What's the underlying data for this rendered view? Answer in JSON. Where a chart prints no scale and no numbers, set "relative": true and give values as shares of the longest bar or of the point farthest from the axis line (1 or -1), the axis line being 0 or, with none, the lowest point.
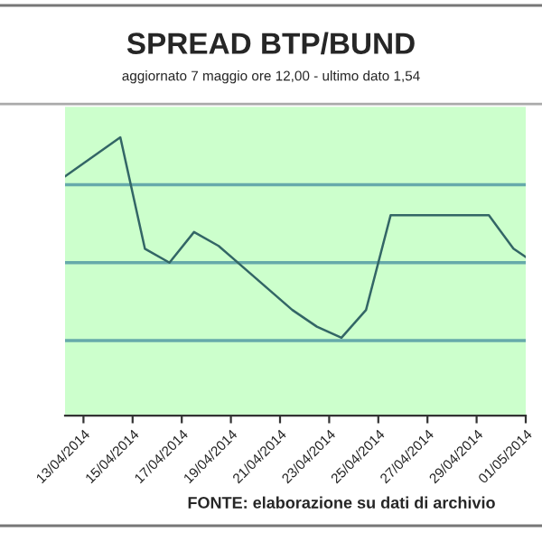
{
  "chart_data": {
    "type": "line",
    "title": "SPREAD BTP/BUND",
    "subtitle": "aggiornato 7 maggio ore 12,00 - ultimo dato 1,54",
    "relative": true,
    "x": [
      "2014-04-12T06:00",
      "2014-04-14T12:00",
      "2014-04-15T12:00",
      "2014-04-16T12:00",
      "2014-04-17T12:00",
      "2014-04-18T12:00",
      "2014-04-21T12:00",
      "2014-04-22T12:00",
      "2014-04-23T12:00",
      "2014-04-24T12:00",
      "2014-04-25T12:00",
      "2014-04-29T12:00",
      "2014-04-30T12:00",
      "2014-05-01T00:00"
    ],
    "series": [
      {
        "color": "#336666",
        "values": [
          0.86,
          1,
          0.6,
          0.55,
          0.66,
          0.61,
          0.38,
          0.32,
          0.28,
          0.38,
          0.72,
          0.72,
          0.6,
          0.57
        ]
      }
    ],
    "xlim": [
      "2014-04-12T06:00",
      "2014-05-01T00:00"
    ],
    "xticks": [
      {
        "value": "2014-04-13",
        "label": "13/04/2014"
      },
      {
        "value": "2014-04-15",
        "label": "15/04/2014"
      },
      {
        "value": "2014-04-17",
        "label": "17/04/2014"
      },
      {
        "value": "2014-04-19",
        "label": "19/04/2014"
      },
      {
        "value": "2014-04-21",
        "label": "21/04/2014"
      },
      {
        "value": "2014-04-23",
        "label": "23/04/2014"
      },
      {
        "value": "2014-04-25",
        "label": "25/04/2014"
      },
      {
        "value": "2014-04-27",
        "label": "27/04/2014"
      },
      {
        "value": "2014-04-29",
        "label": "29/04/2014"
      },
      {
        "value": "2014-05-01",
        "label": "01/05/2014"
      }
    ],
    "ref_lines": [
      {
        "axis": "y",
        "value": 0.27,
        "color": "#66aaaa"
      },
      {
        "axis": "y",
        "value": 0.55,
        "color": "#66aaaa"
      },
      {
        "axis": "y",
        "value": 0.83,
        "color": "#66aaaa"
      }
    ],
    "legend": false,
    "marker": "none",
    "line_style": "solid",
    "annotations": [
      "FONTE: elaborazione su dati di archivio"
    ]
  }
}
